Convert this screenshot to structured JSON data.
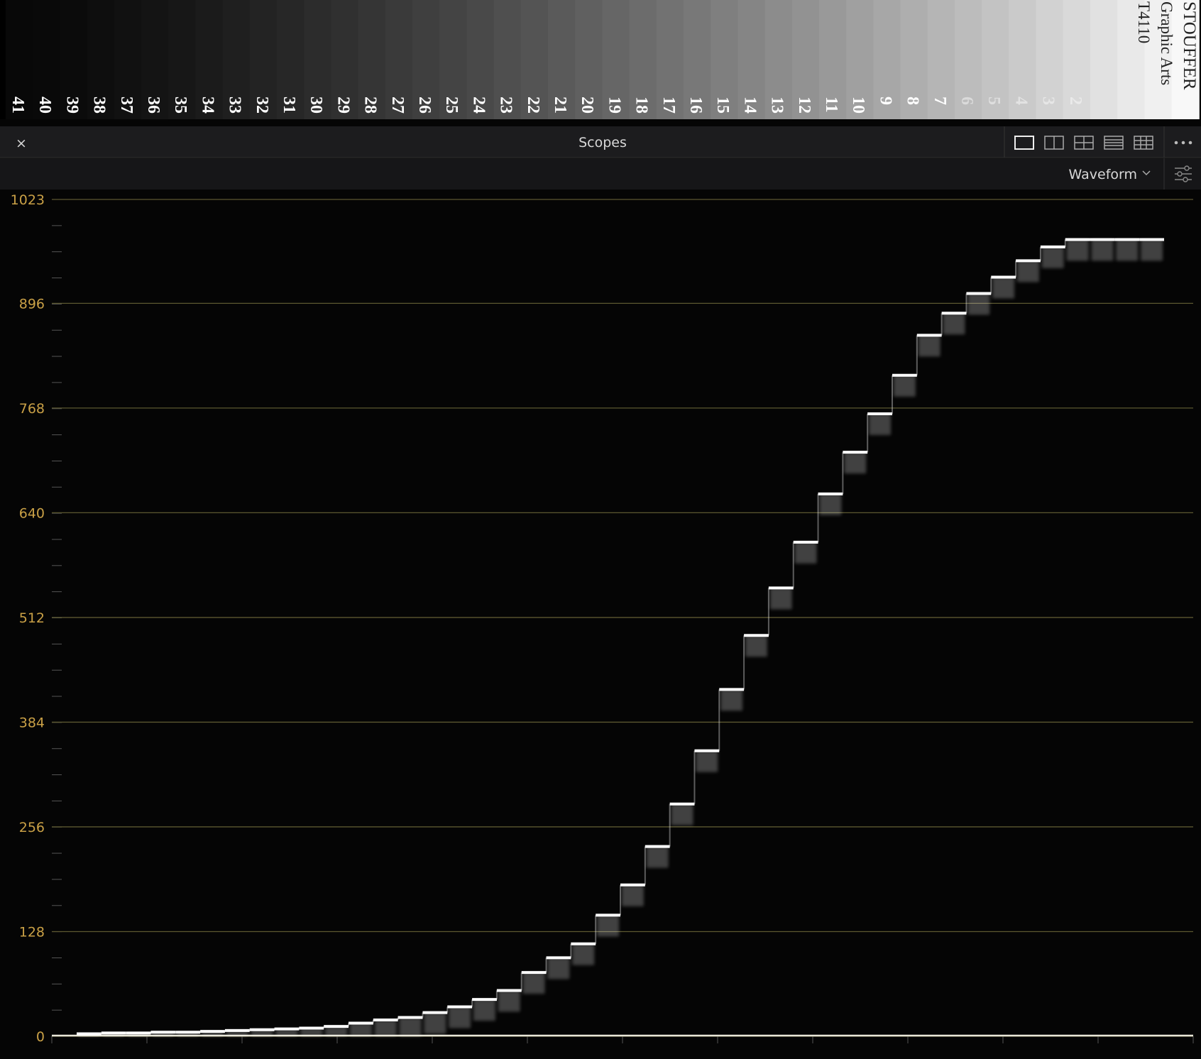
{
  "wedge": {
    "labels": [
      "41",
      "40",
      "39",
      "38",
      "37",
      "36",
      "35",
      "34",
      "33",
      "32",
      "31",
      "30",
      "29",
      "28",
      "27",
      "26",
      "25",
      "24",
      "23",
      "22",
      "21",
      "20",
      "19",
      "18",
      "17",
      "16",
      "15",
      "14",
      "13",
      "12",
      "11",
      "10",
      "9",
      "8",
      "7",
      "6",
      "5",
      "4",
      "3",
      "2"
    ],
    "brand": "STOUFFER",
    "subtitle": "Graphic Arts",
    "code": "T4110"
  },
  "panel": {
    "title": "Scopes",
    "mode": "Waveform"
  },
  "chart_data": {
    "type": "waveform",
    "values": [
      3,
      4,
      4,
      5,
      5,
      6,
      7,
      8,
      9,
      10,
      12,
      16,
      20,
      23,
      29,
      36,
      45,
      56,
      78,
      96,
      113,
      148,
      185,
      232,
      284,
      349,
      424,
      490,
      548,
      604,
      663,
      714,
      761,
      808,
      857,
      884,
      908,
      928,
      948,
      965,
      974,
      974,
      974,
      974
    ],
    "ylim": [
      0,
      1023
    ],
    "yticks": [
      0,
      128,
      256,
      384,
      512,
      640,
      768,
      896,
      1023
    ],
    "grid": true,
    "color": "#ffffff",
    "grid_color": "#5c5830",
    "tick_color": "#c9a046"
  }
}
